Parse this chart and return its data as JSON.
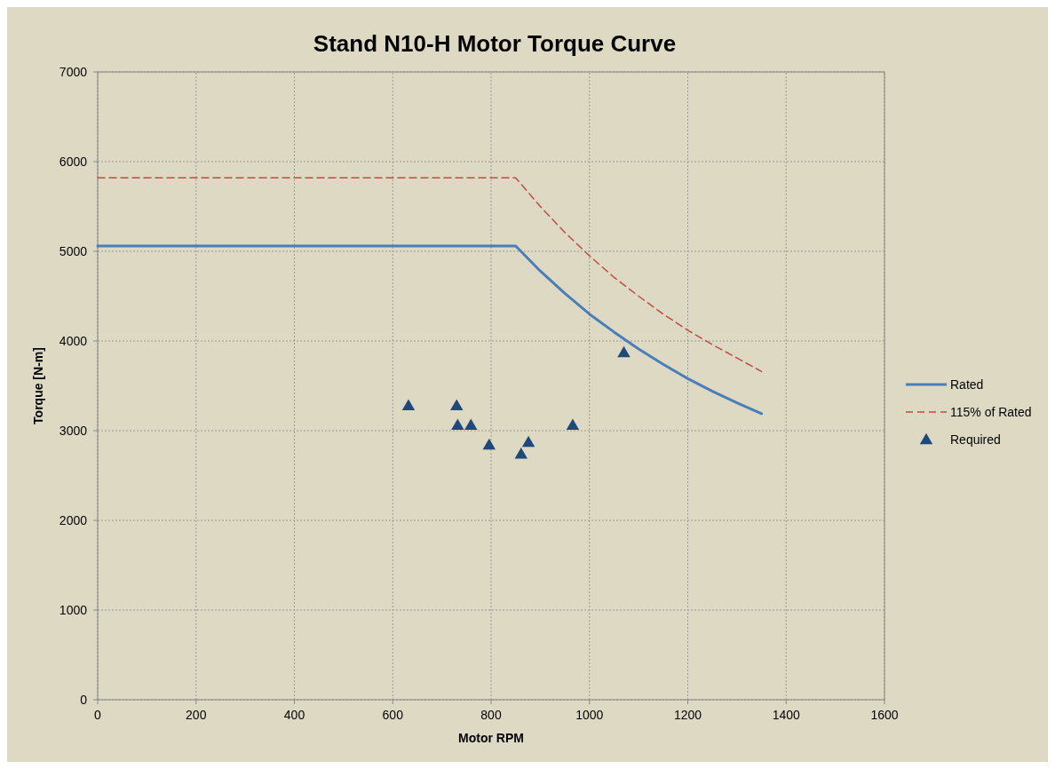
{
  "chart_data": {
    "type": "line",
    "title": "Stand N10-H Motor Torque Curve",
    "xlabel": "Motor RPM",
    "ylabel": "Torque [N-m]",
    "xlim": [
      0,
      1600
    ],
    "xticks": [
      0,
      200,
      400,
      600,
      800,
      1000,
      1200,
      1400,
      1600
    ],
    "ylim": [
      0,
      7000
    ],
    "yticks": [
      0,
      1000,
      2000,
      3000,
      4000,
      5000,
      6000,
      7000
    ],
    "grid": true,
    "legend": "right",
    "series": [
      {
        "name": "Rated",
        "color": "#4a7ebb",
        "line_style": "solid",
        "marker": "none",
        "x": [
          0,
          850,
          900,
          950,
          1000,
          1050,
          1100,
          1150,
          1200,
          1250,
          1300,
          1350
        ],
        "values": [
          5060,
          5060,
          4780,
          4530,
          4300,
          4100,
          3910,
          3740,
          3580,
          3440,
          3310,
          3190
        ]
      },
      {
        "name": "115% of Rated",
        "color": "#be4b48",
        "line_style": "dashed",
        "marker": "none",
        "x": [
          0,
          850,
          900,
          950,
          1000,
          1050,
          1100,
          1150,
          1200,
          1250,
          1300,
          1350
        ],
        "values": [
          5820,
          5820,
          5500,
          5210,
          4950,
          4710,
          4500,
          4300,
          4120,
          3960,
          3810,
          3660
        ]
      },
      {
        "name": "Required",
        "type": "scatter",
        "color": "#1f497d",
        "marker": "triangle",
        "x": [
          632,
          730,
          732,
          759,
          796,
          861,
          876,
          966,
          1070
        ],
        "values": [
          3280,
          3280,
          3060,
          3060,
          2840,
          2740,
          2870,
          3060,
          3870
        ]
      }
    ]
  }
}
